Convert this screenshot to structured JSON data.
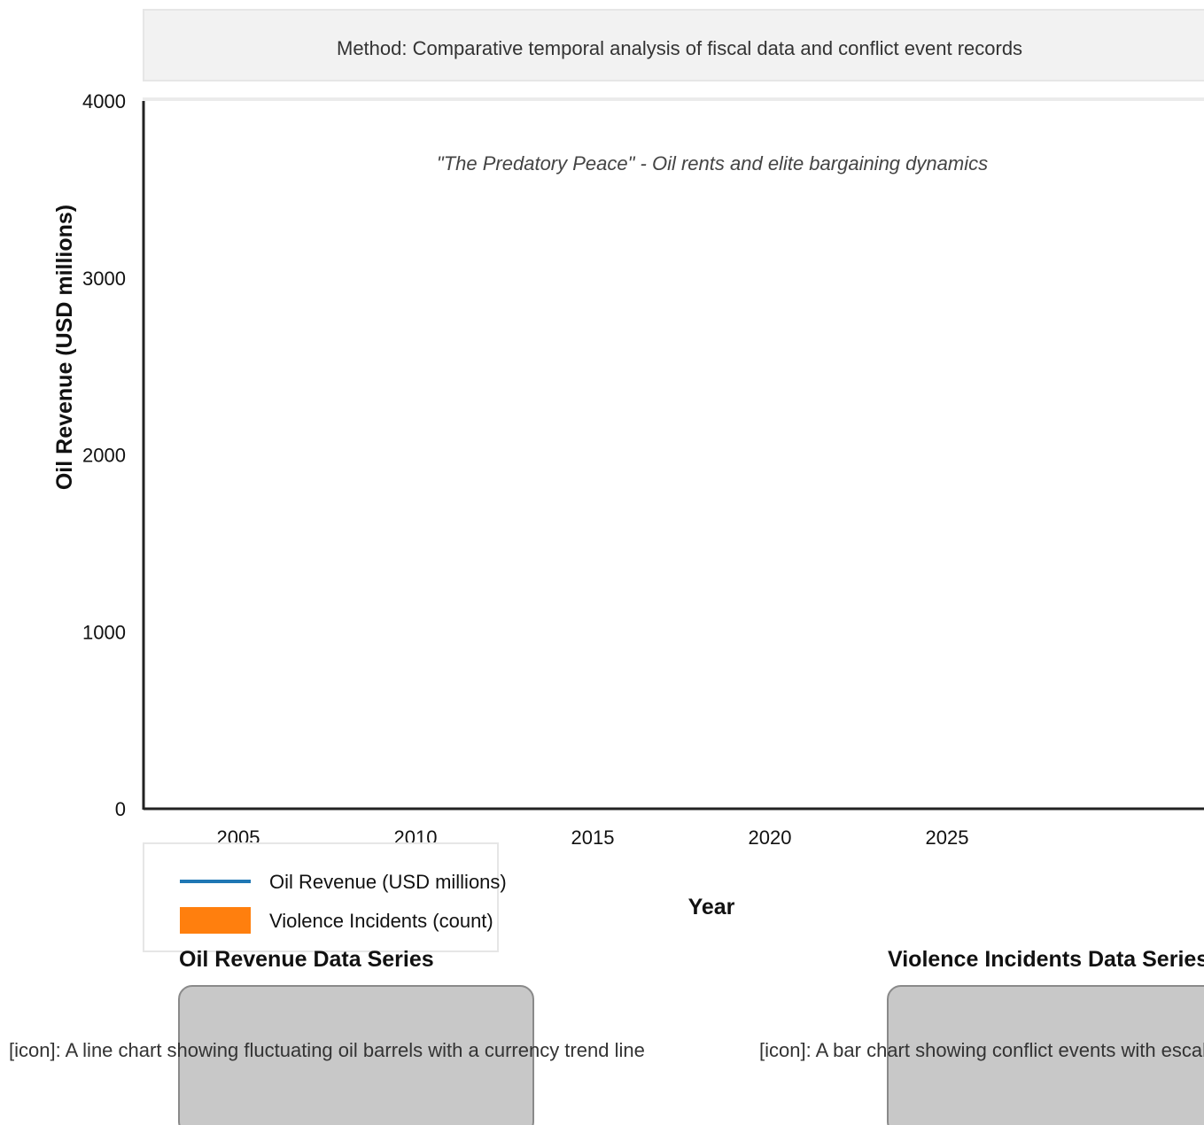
{
  "method": {
    "text": "Method: Comparative temporal analysis of fiscal data and conflict event records"
  },
  "chart_data": {
    "type": "line",
    "title": "",
    "subtitle": "\"The Predatory Peace\" - Oil rents and elite bargaining dynamics",
    "xlabel": "Year",
    "ylabel": "Oil Revenue (USD millions)",
    "x_ticks": [
      "2005",
      "2010",
      "2015",
      "2020",
      "2025"
    ],
    "y_ticks": [
      "0",
      "1000",
      "2000",
      "3000",
      "4000"
    ],
    "ylim": [
      0,
      4000
    ],
    "series": [
      {
        "name": "Oil Revenue (USD millions)",
        "kind": "line",
        "color": "#1f77b4",
        "x": [],
        "values": []
      },
      {
        "name": "Violence Incidents (count)",
        "kind": "bar",
        "color": "#ff7f0e",
        "x": [],
        "values": []
      }
    ],
    "legend_position": "bottom-left",
    "grid": false
  },
  "legend": {
    "items": [
      {
        "label": "Oil Revenue (USD millions)",
        "color": "#1f77b4"
      },
      {
        "label": "Violence Incidents (count)",
        "color": "#ff7f0e"
      }
    ]
  },
  "sections": {
    "oil": {
      "title": "Oil Revenue Data Series",
      "icon_caption": "[icon]: A line chart showing fluctuating oil barrels with a currency trend line"
    },
    "violence": {
      "title": "Violence Incidents Data Series",
      "icon_caption": "[icon]: A bar chart showing conflict events with escalation markers"
    }
  }
}
